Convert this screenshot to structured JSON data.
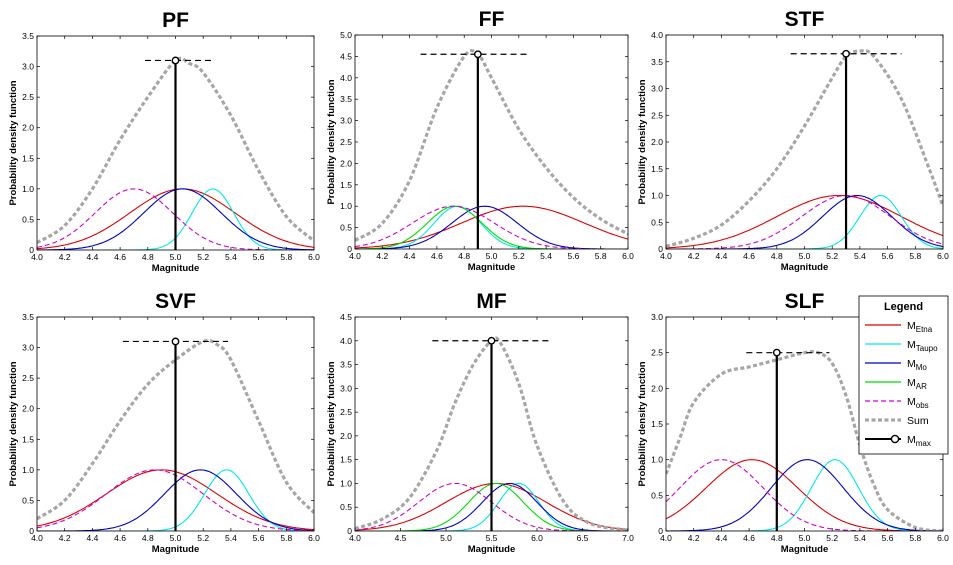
{
  "colors": {
    "M_Etna": "#e00000",
    "M_Taupo": "#00e8e8",
    "M_Mo": "#0000cc",
    "M_AR": "#00dd00",
    "M_obs": "#d000d0",
    "Sum": "#a6a6a6",
    "M_max": "#000000"
  },
  "legend": {
    "title": "Legend",
    "entries": [
      {
        "key": "M_Etna",
        "main": "M",
        "sub": "Etna"
      },
      {
        "key": "M_Taupo",
        "main": "M",
        "sub": "Taupo"
      },
      {
        "key": "M_Mo",
        "main": "M",
        "sub": "Mo"
      },
      {
        "key": "M_AR",
        "main": "M",
        "sub": "AR"
      },
      {
        "key": "M_obs",
        "main": "M",
        "sub": "obs"
      },
      {
        "key": "Sum",
        "main": "Sum",
        "sub": ""
      },
      {
        "key": "M_max",
        "main": "M",
        "sub": "max"
      }
    ]
  },
  "chart_data": [
    {
      "type": "line",
      "title": "PF",
      "xlabel": "Magnitude",
      "ylabel": "Probability density function",
      "xlim": [
        4.0,
        6.0
      ],
      "ylim": [
        0,
        3.5
      ],
      "xticks": [
        4.0,
        4.2,
        4.4,
        4.6,
        4.8,
        5.0,
        5.2,
        5.4,
        5.6,
        5.8,
        6.0
      ],
      "yticks": [
        0,
        0.5,
        1.0,
        1.5,
        2.0,
        2.5,
        3.0,
        3.5
      ],
      "xtick_labels": [
        "4.0",
        "4.2",
        "4.4",
        "4.6",
        "4.8",
        "5.0",
        "5.2",
        "5.4",
        "5.6",
        "5.8",
        "6.0"
      ],
      "ytick_labels": [
        "0",
        "0.5",
        "1.0",
        "1.5",
        "2.0",
        "2.5",
        "3.0",
        "3.5"
      ],
      "curves": [
        {
          "key": "M_Etna",
          "mu": 5.05,
          "sigma": 0.38
        },
        {
          "key": "M_Taupo",
          "mu": 5.27,
          "sigma": 0.15
        },
        {
          "key": "M_Mo",
          "mu": 5.05,
          "sigma": 0.28
        },
        {
          "key": "M_obs",
          "mu": 4.7,
          "sigma": 0.28
        }
      ],
      "sum": [
        [
          4.0,
          0.12
        ],
        [
          4.2,
          0.4
        ],
        [
          4.4,
          1.0
        ],
        [
          4.6,
          1.8
        ],
        [
          4.8,
          2.5
        ],
        [
          5.0,
          3.1
        ],
        [
          5.1,
          3.05
        ],
        [
          5.2,
          2.9
        ],
        [
          5.4,
          2.2
        ],
        [
          5.6,
          1.3
        ],
        [
          5.8,
          0.55
        ],
        [
          6.0,
          0.15
        ]
      ],
      "mmax": {
        "x": 5.0,
        "y": 3.1,
        "range": [
          4.78,
          5.28
        ]
      }
    },
    {
      "type": "line",
      "title": "FF",
      "xlabel": "Magnitude",
      "ylabel": "Probability density function",
      "xlim": [
        4.0,
        6.0
      ],
      "ylim": [
        0,
        5.0
      ],
      "xticks": [
        4.0,
        4.2,
        4.4,
        4.6,
        4.8,
        5.0,
        5.2,
        5.4,
        5.6,
        5.8,
        6.0
      ],
      "yticks": [
        0,
        0.5,
        1.0,
        1.5,
        2.0,
        2.5,
        3.0,
        3.5,
        4.0,
        4.5,
        5.0
      ],
      "xtick_labels": [
        "4.0",
        "4.2",
        "4.4",
        "4.6",
        "4.8",
        "5.0",
        "5.2",
        "5.4",
        "5.6",
        "5.8",
        "6.0"
      ],
      "ytick_labels": [
        "0",
        "0.5",
        "1.0",
        "1.5",
        "2.0",
        "2.5",
        "3.0",
        "3.5",
        "4.0",
        "4.5",
        "5.0"
      ],
      "curves": [
        {
          "key": "M_Etna",
          "mu": 5.23,
          "sigma": 0.45
        },
        {
          "key": "M_Taupo",
          "mu": 4.75,
          "sigma": 0.17
        },
        {
          "key": "M_Mo",
          "mu": 4.95,
          "sigma": 0.24
        },
        {
          "key": "M_AR",
          "mu": 4.73,
          "sigma": 0.2
        },
        {
          "key": "M_obs",
          "mu": 4.72,
          "sigma": 0.3
        }
      ],
      "sum": [
        [
          4.0,
          0.2
        ],
        [
          4.2,
          0.6
        ],
        [
          4.4,
          1.6
        ],
        [
          4.6,
          3.3
        ],
        [
          4.8,
          4.5
        ],
        [
          4.9,
          4.55
        ],
        [
          5.0,
          4.0
        ],
        [
          5.2,
          2.8
        ],
        [
          5.4,
          1.9
        ],
        [
          5.6,
          1.2
        ],
        [
          5.8,
          0.7
        ],
        [
          6.0,
          0.35
        ]
      ],
      "mmax": {
        "x": 4.9,
        "y": 4.55,
        "range": [
          4.48,
          5.28
        ]
      }
    },
    {
      "type": "line",
      "title": "STF",
      "xlabel": "Magnitude",
      "ylabel": "Probability density function",
      "xlim": [
        4.0,
        6.0
      ],
      "ylim": [
        0,
        4.0
      ],
      "xticks": [
        4.0,
        4.2,
        4.4,
        4.6,
        4.8,
        5.0,
        5.2,
        5.4,
        5.6,
        5.8,
        6.0
      ],
      "yticks": [
        0,
        0.5,
        1.0,
        1.5,
        2.0,
        2.5,
        3.0,
        3.5,
        4.0
      ],
      "xtick_labels": [
        "4.0",
        "4.2",
        "4.4",
        "4.6",
        "4.8",
        "5.0",
        "5.2",
        "5.4",
        "5.6",
        "5.8",
        "6.0"
      ],
      "ytick_labels": [
        "0",
        "0.5",
        "1.0",
        "1.5",
        "2.0",
        "2.5",
        "3.0",
        "3.5",
        "4.0"
      ],
      "curves": [
        {
          "key": "M_Etna",
          "mu": 5.25,
          "sigma": 0.45
        },
        {
          "key": "M_Taupo",
          "mu": 5.55,
          "sigma": 0.15
        },
        {
          "key": "M_Mo",
          "mu": 5.38,
          "sigma": 0.25
        },
        {
          "key": "M_obs",
          "mu": 5.3,
          "sigma": 0.32
        }
      ],
      "sum": [
        [
          4.0,
          0.05
        ],
        [
          4.2,
          0.2
        ],
        [
          4.4,
          0.45
        ],
        [
          4.6,
          0.9
        ],
        [
          4.8,
          1.5
        ],
        [
          5.0,
          2.3
        ],
        [
          5.2,
          3.2
        ],
        [
          5.3,
          3.6
        ],
        [
          5.4,
          3.7
        ],
        [
          5.5,
          3.6
        ],
        [
          5.7,
          2.8
        ],
        [
          5.9,
          1.5
        ],
        [
          6.0,
          0.8
        ]
      ],
      "mmax": {
        "x": 5.3,
        "y": 3.65,
        "range": [
          4.9,
          5.7
        ]
      }
    },
    {
      "type": "line",
      "title": "SVF",
      "xlabel": "Magnitude",
      "ylabel": "Probability density function",
      "xlim": [
        4.0,
        6.0
      ],
      "ylim": [
        0,
        3.5
      ],
      "xticks": [
        4.0,
        4.2,
        4.4,
        4.6,
        4.8,
        5.0,
        5.2,
        5.4,
        5.6,
        5.8,
        6.0
      ],
      "yticks": [
        0,
        0.5,
        1.0,
        1.5,
        2.0,
        2.5,
        3.0,
        3.5
      ],
      "xtick_labels": [
        "4.0",
        "4.2",
        "4.4",
        "4.6",
        "4.8",
        "5.0",
        "5.2",
        "5.4",
        "5.6",
        "5.8",
        "6.0"
      ],
      "ytick_labels": [
        "0",
        "0.5",
        "1.0",
        "1.5",
        "2.0",
        "2.5",
        "3.0",
        "3.5"
      ],
      "curves": [
        {
          "key": "M_Etna",
          "mu": 4.9,
          "sigma": 0.4
        },
        {
          "key": "M_Taupo",
          "mu": 5.37,
          "sigma": 0.16
        },
        {
          "key": "M_Mo",
          "mu": 5.18,
          "sigma": 0.26
        },
        {
          "key": "M_obs",
          "mu": 4.85,
          "sigma": 0.35
        }
      ],
      "sum": [
        [
          4.0,
          0.2
        ],
        [
          4.2,
          0.5
        ],
        [
          4.4,
          1.1
        ],
        [
          4.6,
          1.8
        ],
        [
          4.8,
          2.4
        ],
        [
          5.0,
          2.8
        ],
        [
          5.2,
          3.1
        ],
        [
          5.3,
          3.05
        ],
        [
          5.4,
          2.8
        ],
        [
          5.6,
          1.8
        ],
        [
          5.8,
          0.8
        ],
        [
          6.0,
          0.3
        ]
      ],
      "mmax": {
        "x": 5.0,
        "y": 3.1,
        "range": [
          4.62,
          5.38
        ]
      }
    },
    {
      "type": "line",
      "title": "MF",
      "xlabel": "Magnitude",
      "ylabel": "Probability density function",
      "xlim": [
        4.0,
        7.0
      ],
      "ylim": [
        0,
        4.5
      ],
      "xticks": [
        4.0,
        4.5,
        5.0,
        5.5,
        6.0,
        6.5,
        7.0
      ],
      "yticks": [
        0,
        0.5,
        1.0,
        1.5,
        2.0,
        2.5,
        3.0,
        3.5,
        4.0,
        4.5
      ],
      "xtick_labels": [
        "4.0",
        "4.5",
        "5.0",
        "5.5",
        "6.0",
        "6.5",
        "7.0"
      ],
      "ytick_labels": [
        "0",
        "0.5",
        "1.0",
        "1.5",
        "2.0",
        "2.5",
        "3.0",
        "3.5",
        "4.0",
        "4.5"
      ],
      "curves": [
        {
          "key": "M_Etna",
          "mu": 5.55,
          "sigma": 0.55
        },
        {
          "key": "M_Taupo",
          "mu": 5.8,
          "sigma": 0.22
        },
        {
          "key": "M_Mo",
          "mu": 5.7,
          "sigma": 0.3
        },
        {
          "key": "M_AR",
          "mu": 5.55,
          "sigma": 0.3
        },
        {
          "key": "M_obs",
          "mu": 5.1,
          "sigma": 0.4
        }
      ],
      "sum": [
        [
          4.0,
          0.05
        ],
        [
          4.3,
          0.25
        ],
        [
          4.6,
          0.7
        ],
        [
          4.9,
          1.7
        ],
        [
          5.1,
          2.7
        ],
        [
          5.3,
          3.5
        ],
        [
          5.5,
          4.0
        ],
        [
          5.6,
          3.95
        ],
        [
          5.8,
          3.1
        ],
        [
          6.0,
          1.8
        ],
        [
          6.3,
          0.6
        ],
        [
          6.6,
          0.15
        ],
        [
          7.0,
          0.02
        ]
      ],
      "mmax": {
        "x": 5.5,
        "y": 4.0,
        "range": [
          4.85,
          6.15
        ]
      }
    },
    {
      "type": "line",
      "title": "SLF",
      "xlabel": "Magnitude",
      "ylabel": "Probability density function",
      "xlim": [
        4.0,
        6.0
      ],
      "ylim": [
        0,
        3.0
      ],
      "xticks": [
        4.0,
        4.2,
        4.4,
        4.6,
        4.8,
        5.0,
        5.2,
        5.4,
        5.6,
        5.8,
        6.0
      ],
      "yticks": [
        0,
        0.5,
        1.0,
        1.5,
        2.0,
        2.5,
        3.0
      ],
      "xtick_labels": [
        "4.0",
        "4.2",
        "4.4",
        "4.6",
        "4.8",
        "5.0",
        "5.2",
        "5.4",
        "5.6",
        "5.8",
        "6.0"
      ],
      "ytick_labels": [
        "0",
        "0.5",
        "1.0",
        "1.5",
        "2.0",
        "2.5",
        "3.0"
      ],
      "curves": [
        {
          "key": "M_Etna",
          "mu": 4.62,
          "sigma": 0.33
        },
        {
          "key": "M_Taupo",
          "mu": 5.22,
          "sigma": 0.17
        },
        {
          "key": "M_Mo",
          "mu": 5.02,
          "sigma": 0.26
        },
        {
          "key": "M_obs",
          "mu": 4.4,
          "sigma": 0.3
        }
      ],
      "sum": [
        [
          4.0,
          0.8
        ],
        [
          4.1,
          1.3
        ],
        [
          4.2,
          1.8
        ],
        [
          4.4,
          2.2
        ],
        [
          4.6,
          2.3
        ],
        [
          4.8,
          2.4
        ],
        [
          5.0,
          2.5
        ],
        [
          5.1,
          2.5
        ],
        [
          5.2,
          2.35
        ],
        [
          5.3,
          1.9
        ],
        [
          5.4,
          1.2
        ],
        [
          5.5,
          0.65
        ],
        [
          5.6,
          0.3
        ],
        [
          5.8,
          0.05
        ],
        [
          6.0,
          0.0
        ]
      ],
      "mmax": {
        "x": 4.8,
        "y": 2.5,
        "range": [
          4.58,
          5.18
        ]
      }
    }
  ]
}
